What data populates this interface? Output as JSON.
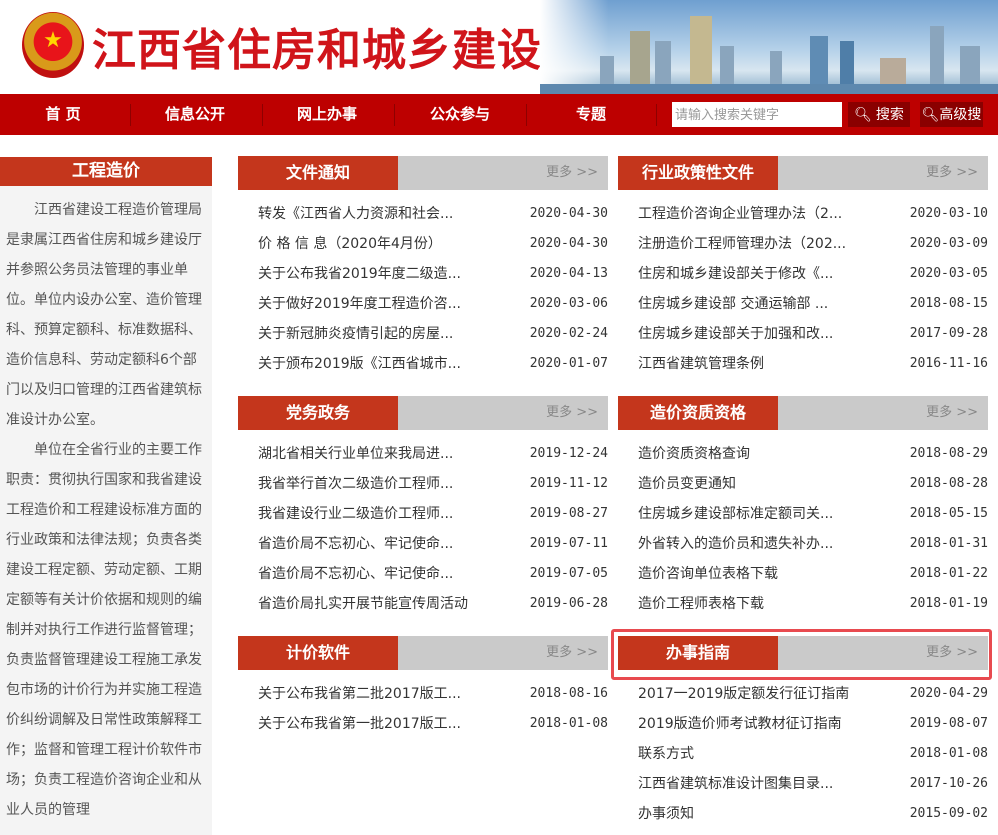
{
  "header": {
    "title": "江西省住房和城乡建设厅",
    "emblem_icon": "national-emblem-icon"
  },
  "nav": {
    "items": [
      "首 页",
      "信息公开",
      "网上办事",
      "公众参与",
      "专题"
    ],
    "search_placeholder": "请输入搜索关键字",
    "search_label": "搜索",
    "advanced_label": "高级搜",
    "search_icon": "magnifier-icon"
  },
  "sidebar": {
    "title": "工程造价",
    "paragraphs": [
      "江西省建设工程造价管理局是隶属江西省住房和城乡建设厅并参照公务员法管理的事业单位。单位内设办公室、造价管理科、预算定额科、标准数据科、造价信息科、劳动定额科6个部门以及归口管理的江西省建筑标准设计办公室。",
      "单位在全省行业的主要工作职责：贯彻执行国家和我省建设工程造价和工程建设标准方面的行业政策和法律法规；负责各类建设工程定额、劳动定额、工期定额等有关计价依据和规则的编制并对执行工作进行监督管理；负责监督管理建设工程施工承发包市场的计价行为并实施工程造价纠纷调解及日常性政策解释工作；监督和管理工程计价软件市场；负责工程造价咨询企业和从业人员的管理"
    ]
  },
  "more_label": "更多 >>",
  "panels": [
    {
      "title": "文件通知",
      "items": [
        [
          "转发《江西省人力资源和社会...",
          "2020-04-30"
        ],
        [
          "价 格 信 息（2020年4月份）",
          "2020-04-30"
        ],
        [
          "关于公布我省2019年度二级造...",
          "2020-04-13"
        ],
        [
          "关于做好2019年度工程造价咨...",
          "2020-03-06"
        ],
        [
          "关于新冠肺炎疫情引起的房屋...",
          "2020-02-24"
        ],
        [
          "关于颁布2019版《江西省城市...",
          "2020-01-07"
        ]
      ]
    },
    {
      "title": "行业政策性文件",
      "items": [
        [
          "工程造价咨询企业管理办法（2...",
          "2020-03-10"
        ],
        [
          "注册造价工程师管理办法（202...",
          "2020-03-09"
        ],
        [
          "住房和城乡建设部关于修改《...",
          "2020-03-05"
        ],
        [
          "住房城乡建设部 交通运输部 ...",
          "2018-08-15"
        ],
        [
          "住房城乡建设部关于加强和改...",
          "2017-09-28"
        ],
        [
          "江西省建筑管理条例",
          "2016-11-16"
        ]
      ]
    },
    {
      "title": "党务政务",
      "items": [
        [
          "湖北省相关行业单位来我局进...",
          "2019-12-24"
        ],
        [
          "我省举行首次二级造价工程师...",
          "2019-11-12"
        ],
        [
          "我省建设行业二级造价工程师...",
          "2019-08-27"
        ],
        [
          "省造价局不忘初心、牢记使命...",
          "2019-07-11"
        ],
        [
          "省造价局不忘初心、牢记使命...",
          "2019-07-05"
        ],
        [
          "省造价局扎实开展节能宣传周活动",
          "2019-06-28"
        ]
      ]
    },
    {
      "title": "造价资质资格",
      "items": [
        [
          "造价资质资格查询",
          "2018-08-29"
        ],
        [
          "造价员变更通知",
          "2018-08-28"
        ],
        [
          "住房城乡建设部标准定额司关...",
          "2018-05-15"
        ],
        [
          "外省转入的造价员和遗失补办...",
          "2018-01-31"
        ],
        [
          "造价咨询单位表格下载",
          "2018-01-22"
        ],
        [
          "造价工程师表格下载",
          "2018-01-19"
        ]
      ]
    },
    {
      "title": "计价软件",
      "items": [
        [
          "关于公布我省第二批2017版工...",
          "2018-08-16"
        ],
        [
          "关于公布我省第一批2017版工...",
          "2018-01-08"
        ]
      ]
    },
    {
      "title": "办事指南",
      "items": [
        [
          "2017一2019版定额发行征订指南",
          "2020-04-29"
        ],
        [
          "2019版造价师考试教材征订指南",
          "2019-08-07"
        ],
        [
          "联系方式",
          "2018-01-08"
        ],
        [
          "江西省建筑标准设计图集目录...",
          "2017-10-26"
        ],
        [
          "办事须知",
          "2015-09-02"
        ]
      ]
    }
  ],
  "colors": {
    "nav": "#bd0000",
    "section": "#c4361c",
    "highlight": "#e84a4f"
  }
}
